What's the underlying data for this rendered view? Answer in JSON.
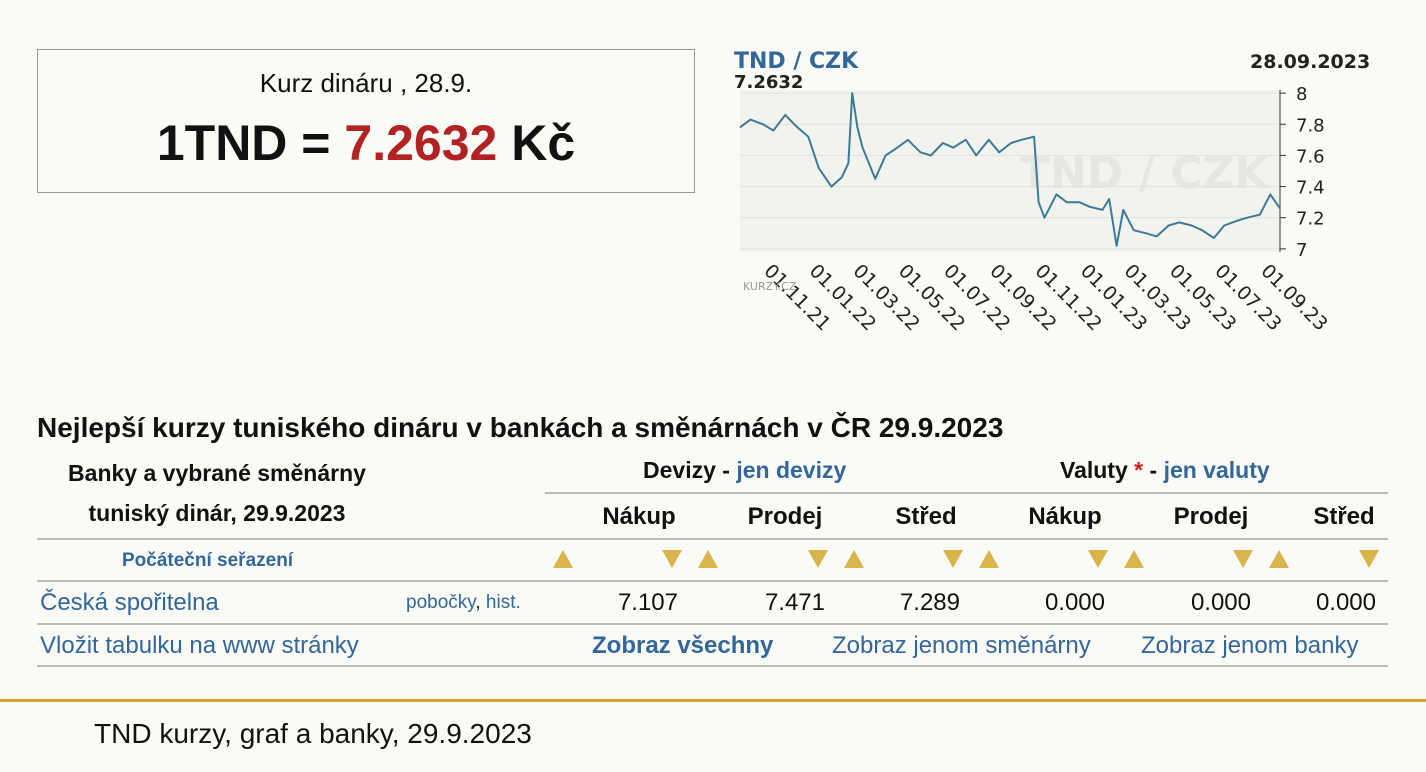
{
  "rate_box": {
    "subtitle": "Kurz dináru  , 28.9.",
    "lhs": "1TND = ",
    "value": "7.2632",
    "unit": " Kč"
  },
  "chart_data": {
    "type": "line",
    "title": "TND / CZK",
    "last_value": "7.2632",
    "date": "28.09.2023",
    "watermark": "TND / CZK",
    "brand": "KURZY.CZ",
    "y_ticks": [
      8,
      7.8,
      7.6,
      7.4,
      7.2,
      7
    ],
    "ylim": [
      6.98,
      8.02
    ],
    "x_ticks": [
      "01.11.21",
      "01.01.22",
      "01.03.22",
      "01.05.22",
      "01.07.22",
      "01.09.22",
      "01.11.22",
      "01.01.23",
      "01.03.23",
      "01.05.23",
      "01.07.23",
      "01.09.23"
    ],
    "series": [
      {
        "color": "#3d7a99",
        "x": [
          "2021-10-01",
          "2021-10-15",
          "2021-11-01",
          "2021-11-15",
          "2021-12-01",
          "2021-12-15",
          "2022-01-01",
          "2022-01-15",
          "2022-02-01",
          "2022-02-15",
          "2022-02-24",
          "2022-03-01",
          "2022-03-08",
          "2022-03-15",
          "2022-04-01",
          "2022-04-15",
          "2022-05-01",
          "2022-05-15",
          "2022-06-01",
          "2022-06-15",
          "2022-07-01",
          "2022-07-15",
          "2022-08-01",
          "2022-08-15",
          "2022-09-01",
          "2022-09-15",
          "2022-10-01",
          "2022-10-15",
          "2022-11-01",
          "2022-11-07",
          "2022-11-15",
          "2022-12-01",
          "2022-12-15",
          "2023-01-01",
          "2023-01-15",
          "2023-02-01",
          "2023-02-10",
          "2023-02-20",
          "2023-03-01",
          "2023-03-15",
          "2023-04-01",
          "2023-04-15",
          "2023-05-01",
          "2023-05-15",
          "2023-06-01",
          "2023-06-15",
          "2023-07-01",
          "2023-07-15",
          "2023-08-01",
          "2023-08-15",
          "2023-09-01",
          "2023-09-15",
          "2023-09-28"
        ],
        "y": [
          7.78,
          7.83,
          7.8,
          7.76,
          7.86,
          7.79,
          7.72,
          7.52,
          7.4,
          7.46,
          7.55,
          8.0,
          7.78,
          7.65,
          7.45,
          7.6,
          7.65,
          7.7,
          7.62,
          7.6,
          7.68,
          7.65,
          7.7,
          7.6,
          7.7,
          7.62,
          7.68,
          7.7,
          7.72,
          7.3,
          7.2,
          7.35,
          7.3,
          7.3,
          7.27,
          7.25,
          7.32,
          7.02,
          7.25,
          7.12,
          7.1,
          7.08,
          7.15,
          7.17,
          7.15,
          7.12,
          7.07,
          7.15,
          7.18,
          7.2,
          7.22,
          7.35,
          7.26
        ]
      }
    ]
  },
  "table": {
    "title": "Nejlepší kurzy tuniského dináru v bankách a směnárnách v ČR 29.9.2023",
    "left_header_line1": "Banky a vybrané směnárny",
    "left_header_line2": "tuniský dinár, 29.9.2023",
    "devizy_label": "Devizy",
    "devizy_sep": " - ",
    "devizy_link": "jen devizy",
    "valuty_label": "Valuty",
    "valuty_star": " *",
    "valuty_sep": " - ",
    "valuty_link": "jen valuty",
    "col_headers": [
      "Nákup",
      "Prodej",
      "Střed",
      "Nákup",
      "Prodej",
      "Střed"
    ],
    "sort_label": "Počáteční seřazení",
    "rows": [
      {
        "bank": "Česká spořitelna",
        "branches": "pobočky",
        "comma": ",",
        "hist": "hist.",
        "values": [
          "7.107",
          "7.471",
          "7.289",
          "0.000",
          "0.000",
          "0.000"
        ]
      }
    ],
    "embed_link": "Vložit tabulku na www stránky",
    "show_all": "Zobraz všechny",
    "show_exchanges": "Zobraz jenom směnárny",
    "show_banks": "Zobraz jenom banky"
  },
  "footer": {
    "text": "TND kurzy, graf a banky, 29.9.2023"
  }
}
